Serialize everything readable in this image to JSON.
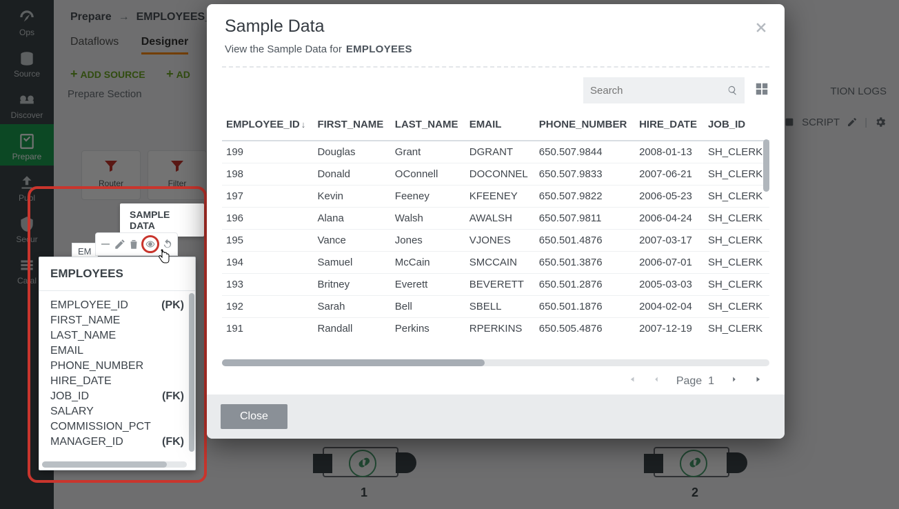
{
  "sidebar": {
    "items": [
      {
        "label": "Ops",
        "icon": "gauge"
      },
      {
        "label": "Source",
        "icon": "db"
      },
      {
        "label": "Discover",
        "icon": "binoc"
      },
      {
        "label": "Prepare",
        "icon": "sheet",
        "active": true
      },
      {
        "label": "Publ",
        "icon": "upload"
      },
      {
        "label": "Secur",
        "icon": "shield"
      },
      {
        "label": "Catal",
        "icon": "list"
      }
    ]
  },
  "breadcrumb": {
    "root": "Prepare",
    "current": "EMPLOYEES_JOI"
  },
  "tabs": {
    "items": [
      "Dataflows",
      "Designer"
    ],
    "active": "Designer"
  },
  "designer": {
    "add_source": "ADD SOURCE",
    "add_truncated": "AD",
    "section": "Prepare Section",
    "right_log": "TION LOGS",
    "right_script": "SCRIPT",
    "tool_cards": [
      {
        "label": "Router"
      },
      {
        "label": "Filter"
      }
    ],
    "join_labels": [
      "1",
      "2"
    ]
  },
  "callout": {
    "tooltip": "SAMPLE DATA",
    "card_title": "EMPLOYEES",
    "left_tag": "EM",
    "columns": [
      {
        "name": "EMPLOYEE_ID",
        "key": "(PK)"
      },
      {
        "name": "FIRST_NAME"
      },
      {
        "name": "LAST_NAME"
      },
      {
        "name": "EMAIL"
      },
      {
        "name": "PHONE_NUMBER"
      },
      {
        "name": "HIRE_DATE"
      },
      {
        "name": "JOB_ID",
        "key": "(FK)"
      },
      {
        "name": "SALARY"
      },
      {
        "name": "COMMISSION_PCT"
      },
      {
        "name": "MANAGER_ID",
        "key": "(FK)"
      }
    ]
  },
  "modal": {
    "title": "Sample Data",
    "subtitle_prefix": "View the Sample Data for",
    "subtitle_entity": "EMPLOYEES",
    "search_placeholder": "Search",
    "columns": [
      "EMPLOYEE_ID",
      "FIRST_NAME",
      "LAST_NAME",
      "EMAIL",
      "PHONE_NUMBER",
      "HIRE_DATE",
      "JOB_ID"
    ],
    "sort_col": "EMPLOYEE_ID",
    "sort_dir": "desc",
    "rows": [
      [
        "199",
        "Douglas",
        "Grant",
        "DGRANT",
        "650.507.9844",
        "2008-01-13",
        "SH_CLERK"
      ],
      [
        "198",
        "Donald",
        "OConnell",
        "DOCONNEL",
        "650.507.9833",
        "2007-06-21",
        "SH_CLERK"
      ],
      [
        "197",
        "Kevin",
        "Feeney",
        "KFEENEY",
        "650.507.9822",
        "2006-05-23",
        "SH_CLERK"
      ],
      [
        "196",
        "Alana",
        "Walsh",
        "AWALSH",
        "650.507.9811",
        "2006-04-24",
        "SH_CLERK"
      ],
      [
        "195",
        "Vance",
        "Jones",
        "VJONES",
        "650.501.4876",
        "2007-03-17",
        "SH_CLERK"
      ],
      [
        "194",
        "Samuel",
        "McCain",
        "SMCCAIN",
        "650.501.3876",
        "2006-07-01",
        "SH_CLERK"
      ],
      [
        "193",
        "Britney",
        "Everett",
        "BEVERETT",
        "650.501.2876",
        "2005-03-03",
        "SH_CLERK"
      ],
      [
        "192",
        "Sarah",
        "Bell",
        "SBELL",
        "650.501.1876",
        "2004-02-04",
        "SH_CLERK"
      ],
      [
        "191",
        "Randall",
        "Perkins",
        "RPERKINS",
        "650.505.4876",
        "2007-12-19",
        "SH_CLERK"
      ]
    ],
    "pager": {
      "label": "Page",
      "current": "1"
    },
    "close": "Close"
  },
  "colors": {
    "accent_red": "#c9352d",
    "accent_green": "#1aa051",
    "accent_orange": "#ff8a00",
    "muted": "#8a9097"
  }
}
